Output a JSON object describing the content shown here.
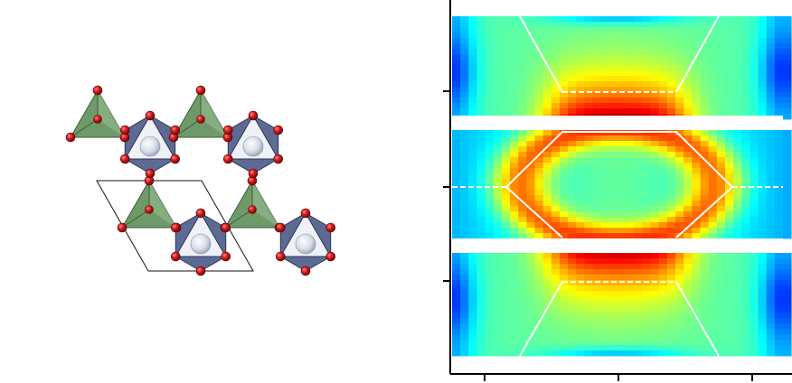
{
  "figure": {
    "left_panel": {
      "polyhedra": [
        {
          "kind": "tetrahedron",
          "color": "#6e9a6a"
        },
        {
          "kind": "octahedron",
          "color": "#5d6a94"
        }
      ],
      "atoms": {
        "oxygen_color": "#d81e1e",
        "cation_color": "#d8dde8"
      },
      "unit_cell_outline": "#111111"
    },
    "right_panel": {
      "colormap": "jet",
      "bands": 3,
      "overlay_line_color": "#ffffff",
      "axis_color": "#000000"
    }
  }
}
